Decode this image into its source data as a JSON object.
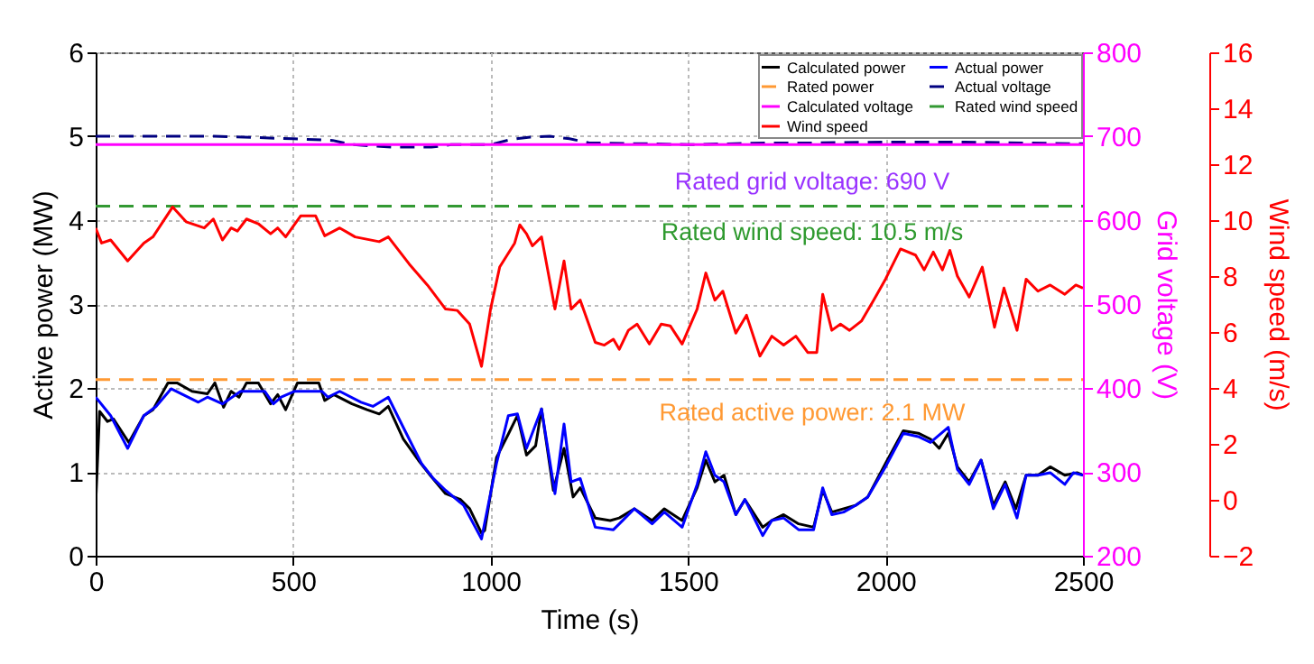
{
  "chart_data": {
    "type": "line",
    "xlabel": "Time (s)",
    "ylabel": "Active power (MW)",
    "y2label": "Grid voltage (V)",
    "y3label": "Wind speed (m/s)",
    "xlim": [
      0,
      2500
    ],
    "xticks": [
      0,
      500,
      1000,
      1500,
      2000,
      2500
    ],
    "ylim": [
      0,
      6
    ],
    "yticks": [
      0,
      1,
      2,
      3,
      4,
      5,
      6
    ],
    "y2lim": [
      200,
      800
    ],
    "y2ticks": [
      200,
      300,
      400,
      500,
      600,
      700,
      800
    ],
    "y3lim": [
      -2,
      16
    ],
    "y3ticks": [
      -2,
      0,
      2,
      4,
      6,
      8,
      10,
      12,
      14,
      16
    ],
    "grid": true,
    "legend": "top right",
    "annotations": [
      "Rated grid voltage: 690 V",
      "Rated wind speed: 10.5 m/s",
      "Rated active power: 2.1 MW"
    ],
    "series": [
      {
        "name": "Calculated power",
        "color": "#000000",
        "line_style": "solid",
        "x": [
          0,
          10,
          30,
          45,
          84,
          122,
          145,
          183,
          206,
          244,
          283,
          302,
          324,
          343,
          363,
          382,
          412,
          443,
          461,
          481,
          511,
          565,
          580,
          603,
          649,
          687,
          718,
          741,
          779,
          817,
          847,
          886,
          924,
          947,
          977,
          985,
          1015,
          1046,
          1068,
          1091,
          1114,
          1129,
          1159,
          1186,
          1209,
          1227,
          1265,
          1303,
          1326,
          1364,
          1409,
          1440,
          1485,
          1523,
          1545,
          1568,
          1591,
          1621,
          1644,
          1689,
          1712,
          1742,
          1780,
          1818,
          1841,
          1864,
          1894,
          1924,
          1955,
          2000,
          2045,
          2083,
          2114,
          2136,
          2159,
          2182,
          2212,
          2242,
          2273,
          2303,
          2330,
          2356,
          2386,
          2417,
          2454,
          2485,
          2500
        ],
        "values": [
          0.6,
          1.72,
          1.6,
          1.63,
          1.35,
          1.67,
          1.74,
          2.06,
          2.06,
          1.96,
          1.93,
          2.06,
          1.77,
          1.96,
          1.89,
          2.06,
          2.06,
          1.81,
          1.92,
          1.74,
          2.06,
          2.06,
          1.85,
          1.92,
          1.81,
          1.74,
          1.69,
          1.78,
          1.39,
          1.14,
          0.96,
          0.74,
          0.67,
          0.56,
          0.27,
          0.3,
          1.17,
          1.46,
          1.67,
          1.2,
          1.31,
          1.75,
          0.78,
          1.28,
          0.7,
          0.81,
          0.45,
          0.42,
          0.45,
          0.56,
          0.42,
          0.56,
          0.42,
          0.81,
          1.14,
          0.88,
          0.96,
          0.49,
          0.67,
          0.34,
          0.42,
          0.49,
          0.38,
          0.34,
          0.78,
          0.52,
          0.56,
          0.6,
          0.7,
          1.1,
          1.49,
          1.46,
          1.39,
          1.28,
          1.46,
          1.06,
          0.88,
          1.14,
          0.6,
          0.88,
          0.56,
          0.96,
          0.96,
          1.06,
          0.96,
          0.99,
          0.96
        ]
      },
      {
        "name": "Actual power",
        "color": "#0000ff",
        "line_style": "solid",
        "x": [
          0,
          38,
          81,
          122,
          153,
          191,
          260,
          283,
          321,
          367,
          428,
          450,
          470,
          504,
          573,
          588,
          618,
          672,
          702,
          741,
          779,
          825,
          855,
          886,
          932,
          977,
          1015,
          1045,
          1068,
          1091,
          1129,
          1163,
          1186,
          1204,
          1227,
          1265,
          1311,
          1326,
          1364,
          1409,
          1440,
          1485,
          1523,
          1545,
          1568,
          1591,
          1621,
          1644,
          1689,
          1712,
          1742,
          1780,
          1818,
          1841,
          1864,
          1894,
          1924,
          1955,
          2000,
          2045,
          2083,
          2114,
          2159,
          2182,
          2212,
          2242,
          2273,
          2303,
          2333,
          2356,
          2386,
          2417,
          2454,
          2476,
          2500
        ],
        "values": [
          1.89,
          1.67,
          1.28,
          1.67,
          1.78,
          1.99,
          1.83,
          1.89,
          1.81,
          1.96,
          1.96,
          1.81,
          1.89,
          1.96,
          1.96,
          1.89,
          1.96,
          1.83,
          1.78,
          1.89,
          1.53,
          1.1,
          0.92,
          0.78,
          0.6,
          0.2,
          1.1,
          1.67,
          1.69,
          1.28,
          1.75,
          0.74,
          1.57,
          0.88,
          0.92,
          0.34,
          0.31,
          0.38,
          0.56,
          0.38,
          0.52,
          0.34,
          0.85,
          1.24,
          0.96,
          0.88,
          0.49,
          0.67,
          0.24,
          0.42,
          0.45,
          0.31,
          0.31,
          0.81,
          0.49,
          0.52,
          0.6,
          0.7,
          1.06,
          1.46,
          1.42,
          1.35,
          1.53,
          1.03,
          0.85,
          1.14,
          0.56,
          0.85,
          0.45,
          0.96,
          0.96,
          0.99,
          0.85,
          0.99,
          0.96
        ]
      },
      {
        "name": "Rated power",
        "color": "#ff9933",
        "line_style": "dashed",
        "x": [
          0,
          2500
        ],
        "values": [
          2.1,
          2.1
        ]
      },
      {
        "name": "Actual voltage",
        "color": "#000080",
        "line_style": "dashed",
        "axis": "y2",
        "x": [
          0,
          300,
          500,
          600,
          650,
          750,
          850,
          900,
          1000,
          1050,
          1100,
          1150,
          1200,
          1250,
          1400,
          1500,
          1700,
          1800,
          2000,
          2200,
          2500
        ],
        "values": [
          700,
          700,
          697,
          695,
          690,
          687,
          687,
          690,
          690,
          696,
          699,
          700,
          697,
          692,
          691,
          690,
          692,
          692,
          693,
          693,
          691
        ]
      },
      {
        "name": "Calculated voltage",
        "color": "#ff00ff",
        "line_style": "solid",
        "axis": "y2",
        "x": [
          0,
          2500
        ],
        "values": [
          690,
          690
        ]
      },
      {
        "name": "Rated wind speed",
        "color": "#339933",
        "line_style": "dashed",
        "axis": "y3",
        "x": [
          0,
          2500
        ],
        "values": [
          10.5,
          10.5
        ]
      },
      {
        "name": "Wind speed",
        "color": "#ff0000",
        "line_style": "solid",
        "axis": "y3",
        "x": [
          0,
          15,
          38,
          81,
          122,
          145,
          195,
          229,
          275,
          298,
          321,
          343,
          359,
          382,
          412,
          443,
          461,
          481,
          519,
          557,
          580,
          618,
          657,
          718,
          741,
          794,
          840,
          886,
          916,
          947,
          977,
          1000,
          1023,
          1061,
          1074,
          1091,
          1106,
          1129,
          1163,
          1186,
          1204,
          1227,
          1265,
          1288,
          1311,
          1326,
          1349,
          1371,
          1402,
          1432,
          1455,
          1485,
          1523,
          1545,
          1568,
          1588,
          1621,
          1648,
          1682,
          1712,
          1742,
          1773,
          1803,
          1826,
          1841,
          1864,
          1886,
          1909,
          1939,
          1970,
          2000,
          2038,
          2076,
          2098,
          2121,
          2144,
          2163,
          2182,
          2212,
          2245,
          2276,
          2300,
          2333,
          2356,
          2386,
          2417,
          2454,
          2482,
          2500
        ],
        "values": [
          9.72,
          9.18,
          9.29,
          8.54,
          9.18,
          9.4,
          10.47,
          9.94,
          9.72,
          10.04,
          9.29,
          9.72,
          9.61,
          10.04,
          9.87,
          9.51,
          9.72,
          9.4,
          10.15,
          10.15,
          9.44,
          9.72,
          9.4,
          9.23,
          9.4,
          8.43,
          7.68,
          6.82,
          6.77,
          6.28,
          4.77,
          6.82,
          8.32,
          9.18,
          9.83,
          9.51,
          9.08,
          9.4,
          6.82,
          8.54,
          6.82,
          7.14,
          5.63,
          5.53,
          5.74,
          5.38,
          6.06,
          6.28,
          5.57,
          6.28,
          6.22,
          5.57,
          6.82,
          8.11,
          7.14,
          7.46,
          5.96,
          6.6,
          5.14,
          5.85,
          5.53,
          5.85,
          5.27,
          5.27,
          7.35,
          6.06,
          6.28,
          6.06,
          6.39,
          7.14,
          7.89,
          8.97,
          8.75,
          8.22,
          8.86,
          8.22,
          8.92,
          8.0,
          7.25,
          8.32,
          6.17,
          7.57,
          6.06,
          7.89,
          7.46,
          7.68,
          7.35,
          7.68,
          7.57
        ]
      }
    ]
  }
}
